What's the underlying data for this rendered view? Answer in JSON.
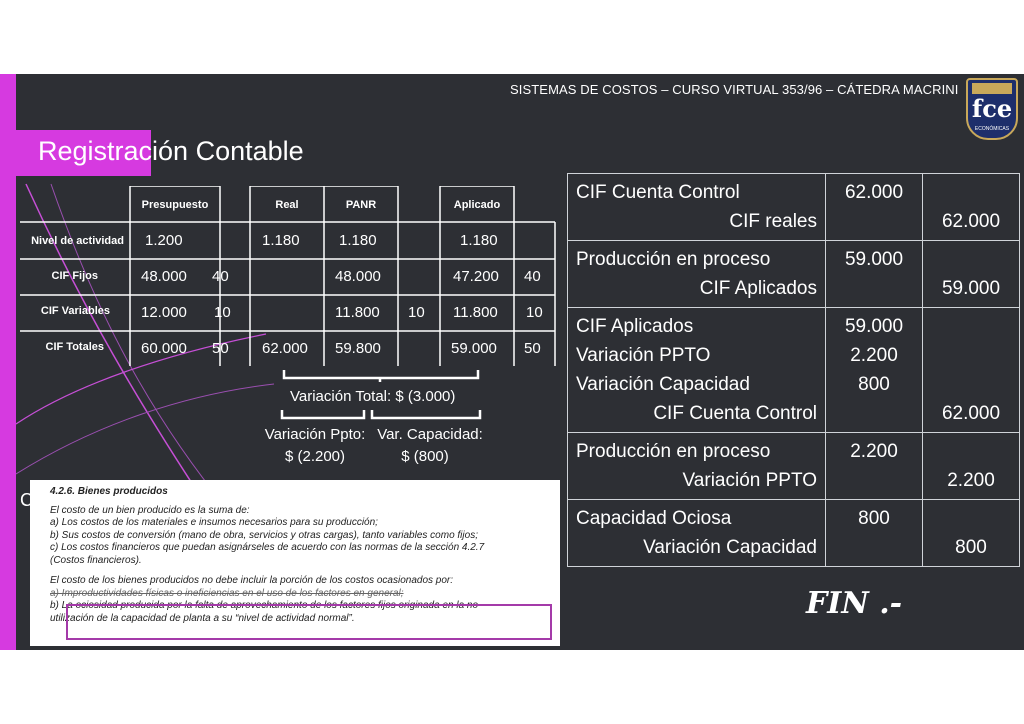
{
  "header": {
    "course_line": "SISTEMAS DE COSTOS – CURSO VIRTUAL 353/96 – CÁTEDRA MACRINI"
  },
  "logo": {
    "text": "fce",
    "top_text": "UBA",
    "sub_text": "ECONÓMICAS"
  },
  "slide_title": "Registración Contable",
  "cost_table": {
    "headers": {
      "presupuesto": "Presupuesto",
      "real": "Real",
      "panr": "PANR",
      "aplicado": "Aplicado"
    },
    "rows": [
      {
        "label": "Nivel de actividad",
        "presupuesto": "1.200",
        "pres_rate": "",
        "real": "1.180",
        "panr": "1.180",
        "panr_rate": "",
        "aplicado": "1.180",
        "apl_rate": ""
      },
      {
        "label": "CIF Fijos",
        "presupuesto": "48.000",
        "pres_rate": "40",
        "real": "",
        "panr": "48.000",
        "panr_rate": "",
        "aplicado": "47.200",
        "apl_rate": "40"
      },
      {
        "label": "CIF Variables",
        "presupuesto": "12.000",
        "pres_rate": "10",
        "real": "",
        "panr": "11.800",
        "panr_rate": "10",
        "aplicado": "11.800",
        "apl_rate": "10"
      },
      {
        "label": "CIF Totales",
        "presupuesto": "60.000",
        "pres_rate": "50",
        "real": "62.000",
        "panr": "59.800",
        "panr_rate": "",
        "aplicado": "59.000",
        "apl_rate": "50"
      }
    ]
  },
  "variances": {
    "total": "Variación Total: $ (3.000)",
    "ppto_label": "Variación Ppto:",
    "ppto_value": "$ (2.200)",
    "cap_label": "Var. Capacidad:",
    "cap_value": "$ (800)"
  },
  "excerpt": {
    "title": "4.2.6. Bienes producidos",
    "lines1": [
      "El costo de un bien producido es la suma de:",
      "a) Los costos de los materiales e insumos necesarios para su producción;",
      "b) Sus costos de conversión (mano de obra, servicios y otras cargas), tanto variables como fijos;",
      "c) Los costos financieros que puedan asignárseles de acuerdo con las normas de la sección 4.2.7",
      "(Costos financieros)."
    ],
    "lines2": [
      "El costo de los bienes producidos no debe incluir la porción de los costos ocasionados por:",
      "a) Improductividades físicas o ineficiencias en el uso de los factores en general;",
      "b) La ociosidad producida por la falta de aprovechamiento de los factores fijos originada en la no",
      "utilización de la capacidad de planta a su “nivel de actividad normal”."
    ]
  },
  "partial_letter": "C",
  "journal": [
    {
      "lines": [
        {
          "account": "CIF Cuenta Control",
          "debit": "62.000",
          "credit": ""
        },
        {
          "account": "CIF reales",
          "debit": "",
          "credit": "62.000",
          "indent": true
        }
      ]
    },
    {
      "lines": [
        {
          "account": "Producción en proceso",
          "debit": "59.000",
          "credit": ""
        },
        {
          "account": "CIF Aplicados",
          "debit": "",
          "credit": "59.000",
          "indent": true
        }
      ]
    },
    {
      "lines": [
        {
          "account": "CIF Aplicados",
          "debit": "59.000",
          "credit": ""
        },
        {
          "account": "Variación PPTO",
          "debit": "2.200",
          "credit": ""
        },
        {
          "account": "Variación Capacidad",
          "debit": "800",
          "credit": ""
        },
        {
          "account": "CIF Cuenta Control",
          "debit": "",
          "credit": "62.000",
          "indent": true
        }
      ]
    },
    {
      "lines": [
        {
          "account": "Producción en proceso",
          "debit": "2.200",
          "credit": ""
        },
        {
          "account": "Variación PPTO",
          "debit": "",
          "credit": "2.200",
          "indent": true
        }
      ]
    },
    {
      "lines": [
        {
          "account": "Capacidad Ociosa",
          "debit": "800",
          "credit": ""
        },
        {
          "account": "Variación Capacidad",
          "debit": "",
          "credit": "800",
          "indent": true
        }
      ]
    }
  ],
  "closing": "FIN .-"
}
